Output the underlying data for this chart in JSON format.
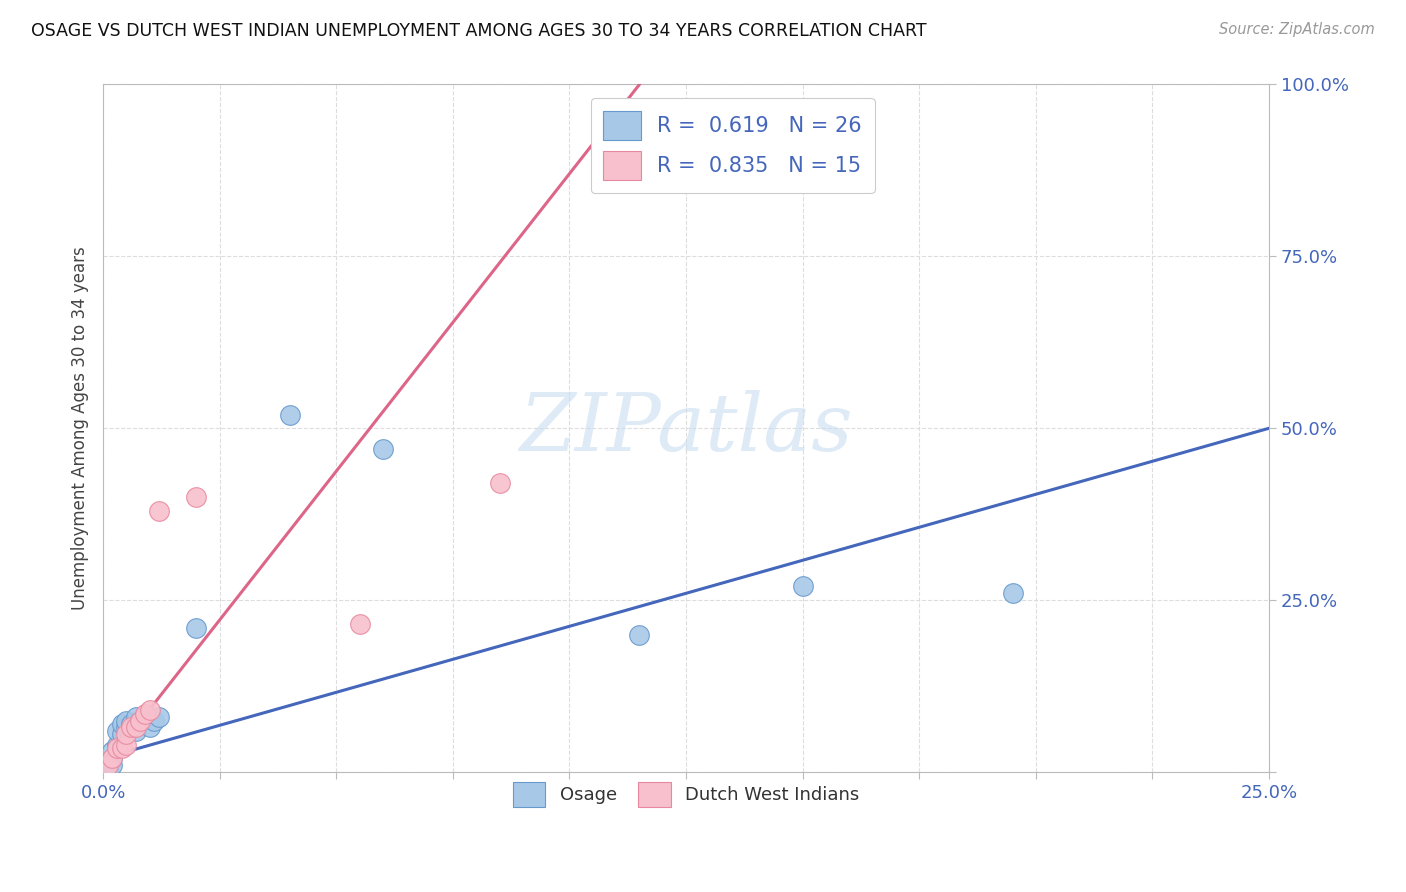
{
  "title": "OSAGE VS DUTCH WEST INDIAN UNEMPLOYMENT AMONG AGES 30 TO 34 YEARS CORRELATION CHART",
  "source": "Source: ZipAtlas.com",
  "ylabel": "Unemployment Among Ages 30 to 34 years",
  "xlim": [
    0.0,
    0.25
  ],
  "ylim": [
    0.0,
    1.0
  ],
  "xtick_vals": [
    0.0,
    0.025,
    0.05,
    0.075,
    0.1,
    0.125,
    0.15,
    0.175,
    0.2,
    0.225,
    0.25
  ],
  "ytick_vals": [
    0.0,
    0.25,
    0.5,
    0.75,
    1.0
  ],
  "osage_scatter_color": "#a8c8e8",
  "osage_edge_color": "#6699cc",
  "dwi_scatter_color": "#f8c0cc",
  "dwi_edge_color": "#e888a0",
  "osage_line_color": "#4466bb",
  "dwi_line_color": "#dd6688",
  "tick_label_color": "#4466bb",
  "R_osage": 0.619,
  "N_osage": 26,
  "R_dwi": 0.835,
  "N_dwi": 15,
  "osage_x": [
    0.001,
    0.001,
    0.001,
    0.002,
    0.002,
    0.002,
    0.003,
    0.003,
    0.004,
    0.004,
    0.005,
    0.005,
    0.006,
    0.007,
    0.007,
    0.008,
    0.009,
    0.01,
    0.011,
    0.012,
    0.02,
    0.04,
    0.06,
    0.115,
    0.15,
    0.195
  ],
  "osage_y": [
    0.005,
    0.01,
    0.015,
    0.01,
    0.02,
    0.03,
    0.04,
    0.06,
    0.055,
    0.07,
    0.065,
    0.075,
    0.07,
    0.06,
    0.08,
    0.075,
    0.08,
    0.065,
    0.075,
    0.08,
    0.21,
    0.52,
    0.47,
    0.2,
    0.27,
    0.26
  ],
  "dwi_x": [
    0.001,
    0.002,
    0.003,
    0.004,
    0.005,
    0.005,
    0.006,
    0.007,
    0.008,
    0.009,
    0.01,
    0.012,
    0.02,
    0.055,
    0.085
  ],
  "dwi_y": [
    0.01,
    0.02,
    0.035,
    0.035,
    0.04,
    0.055,
    0.065,
    0.065,
    0.075,
    0.085,
    0.09,
    0.38,
    0.4,
    0.215,
    0.42
  ],
  "osage_line_x": [
    0.0,
    0.25
  ],
  "osage_line_y": [
    0.02,
    0.5
  ],
  "dwi_line_x": [
    0.0,
    0.115
  ],
  "dwi_line_y": [
    0.005,
    1.0
  ],
  "watermark_text": "ZIPatlas",
  "watermark_color": "#c8ddf0",
  "background_color": "#ffffff",
  "grid_color": "#dddddd",
  "spine_color": "#bbbbbb"
}
